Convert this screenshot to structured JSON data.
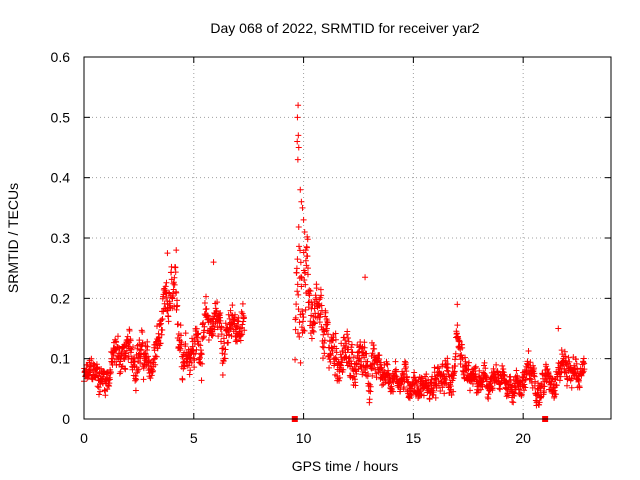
{
  "chart_data": {
    "type": "scatter",
    "title": "Day 068 of 2022, SRMTID for receiver yar2",
    "xlabel": "GPS time / hours",
    "ylabel": "SRMTID / TECUs",
    "xlim": [
      0,
      24
    ],
    "ylim": [
      0,
      0.6
    ],
    "xticks": [
      0,
      5,
      10,
      15,
      20
    ],
    "xtick_labels": [
      "0",
      "5",
      "10",
      "15",
      "20"
    ],
    "yticks": [
      0,
      0.1,
      0.2,
      0.3,
      0.4,
      0.5,
      0.6
    ],
    "ytick_labels": [
      "0",
      "0.1",
      "0.2",
      "0.3",
      "0.4",
      "0.5",
      "0.6"
    ],
    "grid": true,
    "marker_color": "#ff0000",
    "marker": "plus",
    "series": [
      {
        "name": "SRMTID",
        "segments": [
          {
            "t": 0.0,
            "level": 0.065,
            "spread": 0.03
          },
          {
            "t": 0.5,
            "level": 0.075,
            "spread": 0.035
          },
          {
            "t": 1.0,
            "level": 0.07,
            "spread": 0.035
          },
          {
            "t": 1.5,
            "level": 0.11,
            "spread": 0.045
          },
          {
            "t": 2.0,
            "level": 0.1,
            "spread": 0.04
          },
          {
            "t": 2.5,
            "level": 0.12,
            "spread": 0.05
          },
          {
            "t": 3.0,
            "level": 0.075,
            "spread": 0.035
          },
          {
            "t": 3.5,
            "level": 0.14,
            "spread": 0.05
          },
          {
            "t": 4.0,
            "level": 0.19,
            "spread": 0.06
          },
          {
            "t": 4.5,
            "level": 0.13,
            "spread": 0.05
          },
          {
            "t": 5.0,
            "level": 0.12,
            "spread": 0.045
          },
          {
            "t": 5.5,
            "level": 0.14,
            "spread": 0.05
          },
          {
            "t": 6.0,
            "level": 0.17,
            "spread": 0.05
          },
          {
            "t": 6.5,
            "level": 0.13,
            "spread": 0.05
          },
          {
            "t": 7.0,
            "level": 0.16,
            "spread": 0.04
          },
          {
            "t": 7.3,
            "level": 0.15,
            "spread": 0.04
          },
          {
            "t": 9.6,
            "level": 0.1,
            "spread": 0.04
          },
          {
            "t": 9.8,
            "level": 0.3,
            "spread": 0.18
          },
          {
            "t": 10.0,
            "level": 0.25,
            "spread": 0.1
          },
          {
            "t": 10.5,
            "level": 0.15,
            "spread": 0.06
          },
          {
            "t": 11.0,
            "level": 0.12,
            "spread": 0.06
          },
          {
            "t": 11.5,
            "level": 0.11,
            "spread": 0.05
          },
          {
            "t": 12.0,
            "level": 0.1,
            "spread": 0.05
          },
          {
            "t": 12.5,
            "level": 0.09,
            "spread": 0.04
          },
          {
            "t": 13.0,
            "level": 0.1,
            "spread": 0.06
          },
          {
            "t": 13.5,
            "level": 0.08,
            "spread": 0.035
          },
          {
            "t": 14.0,
            "level": 0.075,
            "spread": 0.03
          },
          {
            "t": 15.0,
            "level": 0.06,
            "spread": 0.03
          },
          {
            "t": 16.0,
            "level": 0.05,
            "spread": 0.03
          },
          {
            "t": 17.0,
            "level": 0.08,
            "spread": 0.05
          },
          {
            "t": 17.5,
            "level": 0.06,
            "spread": 0.03
          },
          {
            "t": 18.5,
            "level": 0.055,
            "spread": 0.03
          },
          {
            "t": 19.5,
            "level": 0.06,
            "spread": 0.03
          },
          {
            "t": 20.5,
            "level": 0.07,
            "spread": 0.04
          },
          {
            "t": 21.0,
            "level": 0.065,
            "spread": 0.03
          },
          {
            "t": 21.8,
            "level": 0.095,
            "spread": 0.04
          },
          {
            "t": 22.5,
            "level": 0.075,
            "spread": 0.03
          },
          {
            "t": 22.8,
            "level": 0.07,
            "spread": 0.025
          }
        ],
        "gaps": [
          [
            7.3,
            9.6
          ]
        ],
        "peaks": [
          {
            "x": 9.75,
            "y": 0.52
          },
          {
            "x": 9.72,
            "y": 0.5
          },
          {
            "x": 9.76,
            "y": 0.47
          },
          {
            "x": 9.71,
            "y": 0.46
          },
          {
            "x": 9.78,
            "y": 0.45
          },
          {
            "x": 9.74,
            "y": 0.43
          },
          {
            "x": 9.85,
            "y": 0.38
          },
          {
            "x": 9.9,
            "y": 0.36
          },
          {
            "x": 9.95,
            "y": 0.35
          },
          {
            "x": 10.0,
            "y": 0.33
          },
          {
            "x": 10.05,
            "y": 0.31
          },
          {
            "x": 10.1,
            "y": 0.28
          },
          {
            "x": 10.15,
            "y": 0.27
          },
          {
            "x": 10.2,
            "y": 0.25
          },
          {
            "x": 3.8,
            "y": 0.275
          },
          {
            "x": 4.2,
            "y": 0.28
          },
          {
            "x": 5.9,
            "y": 0.26
          },
          {
            "x": 12.8,
            "y": 0.235
          },
          {
            "x": 17.0,
            "y": 0.19
          },
          {
            "x": 21.6,
            "y": 0.15
          }
        ]
      }
    ],
    "zero_markers": [
      {
        "x": 9.6,
        "y": 0
      },
      {
        "x": 21.0,
        "y": 0
      }
    ]
  }
}
